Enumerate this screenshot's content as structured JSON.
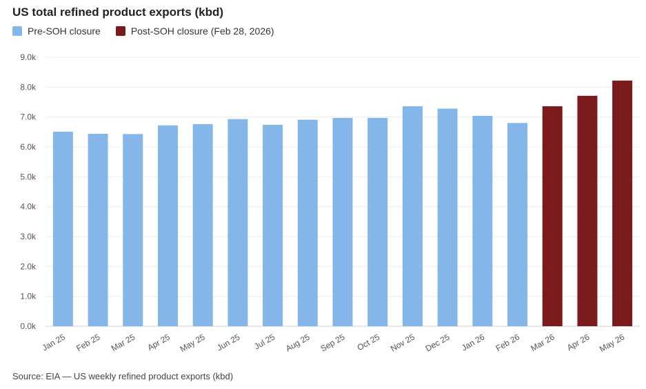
{
  "chart_data": {
    "type": "bar",
    "title": "US total refined product exports (kbd)",
    "categories": [
      "Jan 25",
      "Feb 25",
      "Mar 25",
      "Apr 25",
      "May 25",
      "Jun 25",
      "Jul 25",
      "Aug 25",
      "Sep 25",
      "Oct 25",
      "Nov 25",
      "Dec 25",
      "Jan 26",
      "Feb 26",
      "Mar 26",
      "Apr 26",
      "May 26"
    ],
    "values": [
      6.51,
      6.44,
      6.43,
      6.72,
      6.76,
      6.93,
      6.74,
      6.91,
      6.97,
      6.97,
      7.36,
      7.28,
      7.04,
      6.8,
      7.36,
      7.71,
      8.22
    ],
    "series": [
      {
        "name": "Pre-SOH closure",
        "color": "#85b6ea",
        "indices": [
          0,
          1,
          2,
          3,
          4,
          5,
          6,
          7,
          8,
          9,
          10,
          11,
          12,
          13
        ]
      },
      {
        "name": "Post-SOH closure (Feb 28, 2026)",
        "color": "#7b1a1c",
        "indices": [
          14,
          15,
          16
        ]
      }
    ],
    "ylim": [
      0,
      9
    ],
    "yticks": [
      0,
      1,
      2,
      3,
      4,
      5,
      6,
      7,
      8,
      9
    ],
    "ytick_labels": [
      "0.0k",
      "1.0k",
      "2.0k",
      "3.0k",
      "4.0k",
      "5.0k",
      "6.0k",
      "7.0k",
      "8.0k",
      "9.0k"
    ],
    "grid": true,
    "legend_position": "top-left",
    "source": "Source: EIA — US weekly refined product exports (kbd)"
  }
}
